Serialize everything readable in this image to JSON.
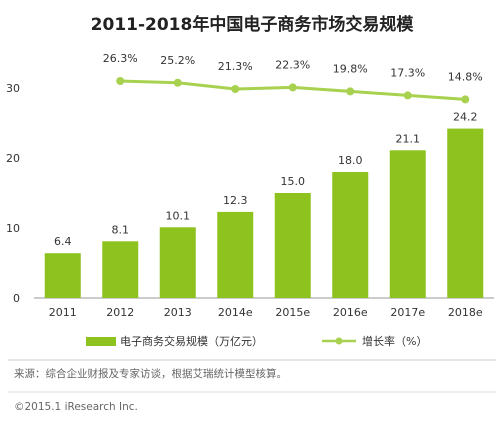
{
  "chart_data": {
    "type": "bar+line",
    "title": "2011-2018年中国电子商务市场交易规模",
    "categories": [
      "2011",
      "2012",
      "2013",
      "2014e",
      "2015e",
      "2016e",
      "2017e",
      "2018e"
    ],
    "series": [
      {
        "name": "电子商务交易规模（万亿元）",
        "type": "bar",
        "color": "#8dc21f",
        "values": [
          6.4,
          8.1,
          10.1,
          12.3,
          15.0,
          18.0,
          21.1,
          24.2
        ],
        "labels": [
          "6.4",
          "8.1",
          "10.1",
          "12.3",
          "15.0",
          "18.0",
          "21.1",
          "24.2"
        ]
      },
      {
        "name": "增长率（%）",
        "type": "line",
        "color": "#a8d14f",
        "values": [
          null,
          26.3,
          25.2,
          21.3,
          22.3,
          19.8,
          17.3,
          14.8
        ],
        "labels": [
          "",
          "26.3%",
          "25.2%",
          "21.3%",
          "22.3%",
          "19.8%",
          "17.3%",
          "14.8%"
        ]
      }
    ],
    "y_ticks": [
      "0",
      "10",
      "20",
      "30"
    ],
    "ylim": [
      0,
      35
    ],
    "grid": false,
    "legend_position": "bottom"
  },
  "footer": {
    "source": "来源：综合企业财报及专家访谈，根据艾瑞统计模型核算。",
    "copyright": "©2015.1 iResearch Inc."
  },
  "colors": {
    "bar": "#8dc21f",
    "line": "#a8d14f",
    "axis": "#999999",
    "text": "#333333"
  }
}
